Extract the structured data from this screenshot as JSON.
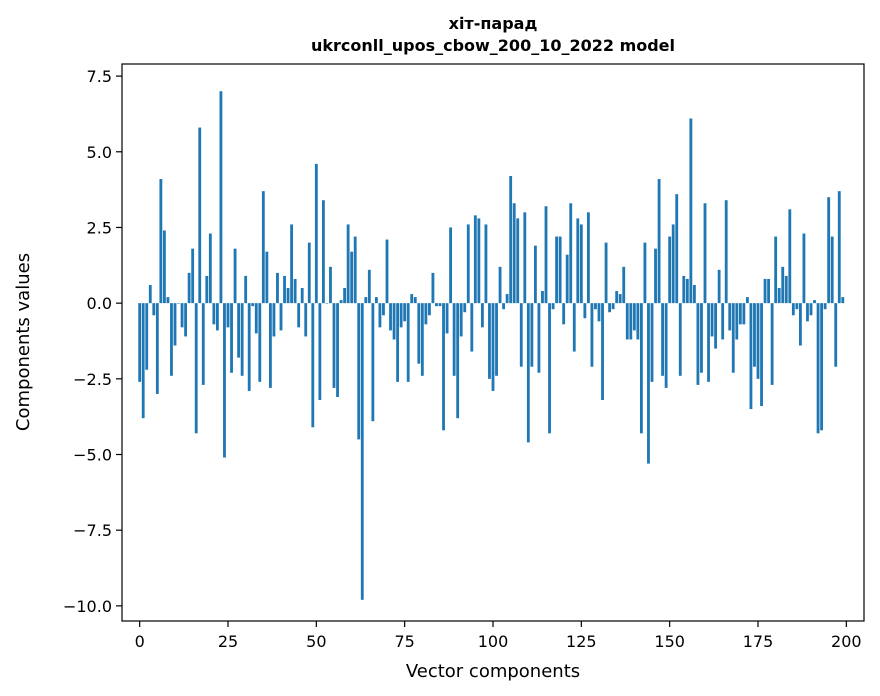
{
  "chart_data": {
    "type": "bar",
    "title": "хіт-парад",
    "subtitle": "ukrconll_upos_cbow_200_10_2022 model",
    "xlabel": "Vector components",
    "ylabel": "Components values",
    "xlim": [
      -5,
      205
    ],
    "ylim": [
      -10.5,
      7.9
    ],
    "xticks": [
      0,
      25,
      50,
      75,
      100,
      125,
      150,
      175,
      200
    ],
    "yticks": [
      7.5,
      5.0,
      2.5,
      0.0,
      -2.5,
      -5.0,
      -7.5,
      -10.0
    ],
    "xtick_labels": [
      "0",
      "25",
      "50",
      "75",
      "100",
      "125",
      "150",
      "175",
      "200"
    ],
    "ytick_labels": [
      "7.5",
      "5.0",
      "2.5",
      "0.0",
      "−2.5",
      "−5.0",
      "−7.5",
      "−10.0"
    ],
    "bar_color": "#1f77b4",
    "values": [
      -2.6,
      -3.8,
      -2.2,
      0.6,
      -0.4,
      -3.0,
      4.1,
      2.4,
      0.2,
      -2.4,
      -1.4,
      0.0,
      -0.8,
      -1.1,
      1.0,
      1.8,
      -4.3,
      5.8,
      -2.7,
      0.9,
      2.3,
      -0.7,
      -0.9,
      7.0,
      -5.1,
      -0.8,
      -2.3,
      1.8,
      -1.8,
      -2.4,
      0.9,
      -2.9,
      -0.1,
      -1.0,
      -2.6,
      3.7,
      1.7,
      -2.8,
      -1.1,
      1.0,
      -0.9,
      0.9,
      0.5,
      2.6,
      0.8,
      -0.8,
      0.5,
      -1.1,
      2.0,
      -4.1,
      4.6,
      -3.2,
      3.4,
      0.0,
      1.2,
      -2.8,
      -3.1,
      0.1,
      0.5,
      2.6,
      1.7,
      2.2,
      -4.5,
      -9.8,
      0.2,
      1.1,
      -3.9,
      0.2,
      -0.8,
      -0.4,
      2.1,
      -0.9,
      -1.2,
      -2.6,
      -0.8,
      -0.6,
      -2.6,
      0.3,
      0.2,
      -2.0,
      -2.4,
      -0.7,
      -0.4,
      1.0,
      -0.1,
      -0.1,
      -4.2,
      -1.0,
      2.5,
      -2.4,
      -3.8,
      -1.1,
      -0.3,
      2.6,
      -1.6,
      2.9,
      2.8,
      -0.8,
      2.6,
      -2.5,
      -2.9,
      -2.4,
      1.2,
      -0.2,
      0.3,
      4.2,
      3.3,
      2.8,
      -2.1,
      3.0,
      -4.6,
      -2.1,
      1.9,
      -2.3,
      0.4,
      3.2,
      -4.3,
      -0.2,
      2.2,
      2.2,
      -0.7,
      1.6,
      3.3,
      -1.6,
      2.8,
      2.6,
      -0.5,
      3.0,
      -2.1,
      -0.2,
      -0.6,
      -3.2,
      2.0,
      -0.3,
      -0.2,
      0.4,
      0.3,
      1.2,
      -1.2,
      -1.2,
      -0.9,
      -1.2,
      -4.3,
      2.0,
      -5.3,
      -2.6,
      1.8,
      4.1,
      -2.4,
      -2.8,
      2.2,
      2.6,
      3.6,
      -2.4,
      0.9,
      0.8,
      6.1,
      0.6,
      -2.7,
      -2.3,
      3.3,
      -2.6,
      -1.1,
      -1.5,
      1.1,
      -1.2,
      3.4,
      -0.9,
      -2.3,
      -1.2,
      -0.7,
      -0.7,
      0.2,
      -3.5,
      -2.1,
      -2.5,
      -3.4,
      0.8,
      0.8,
      -2.7,
      2.2,
      0.5,
      1.2,
      0.9,
      3.1,
      -0.4,
      -0.2,
      -1.4,
      2.3,
      -0.6,
      -0.4,
      0.1,
      -4.3,
      -4.2,
      -0.2,
      3.5,
      2.2,
      -2.1,
      3.7,
      0.2
    ]
  }
}
